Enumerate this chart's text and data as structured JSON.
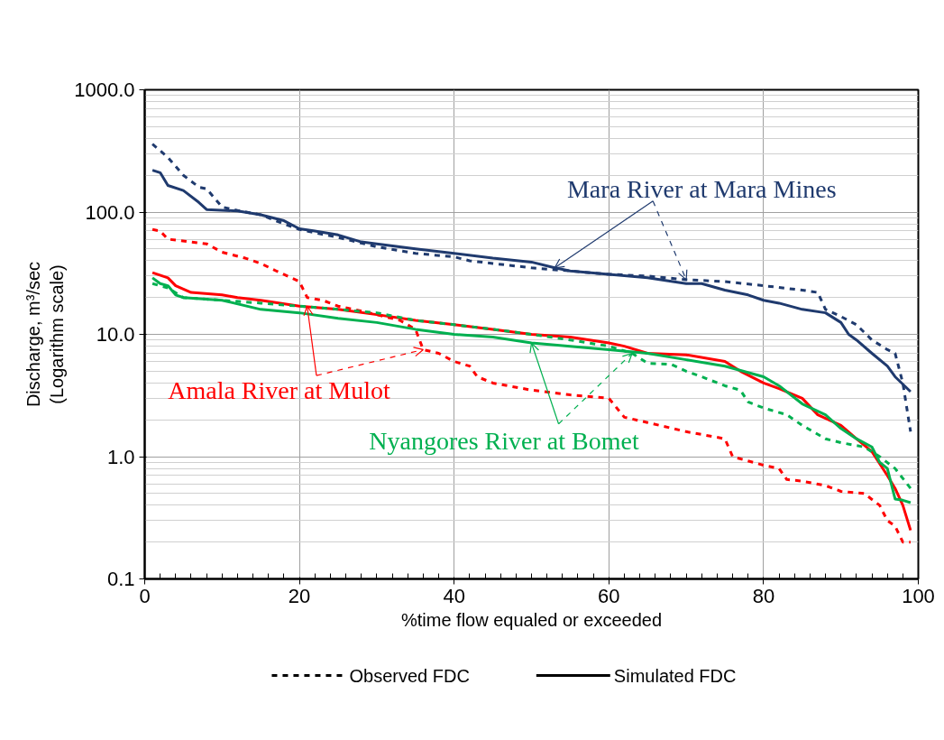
{
  "chart_data": {
    "type": "line",
    "xlabel": "%time flow equaled or exceeded",
    "ylabel": "Discharge, m³/sec\n(Logarithm scale)",
    "log": "y",
    "grid": true,
    "xlim": [
      0,
      100
    ],
    "xticks": [
      0,
      20,
      40,
      60,
      80,
      100
    ],
    "ylim": [
      0.1,
      1000
    ],
    "yticks": [
      {
        "value": 0.1,
        "label": "0.1"
      },
      {
        "value": 1,
        "label": "1.0"
      },
      {
        "value": 10,
        "label": "10.0"
      },
      {
        "value": 100,
        "label": "100.0"
      },
      {
        "value": 1000,
        "label": "1000.0"
      }
    ],
    "annotations": [
      {
        "text": "Mara River at Mara Mines",
        "x": 53,
        "y": 35
      },
      {
        "text": "Amala River at Mulot",
        "x": 21,
        "y": 17
      },
      {
        "text": "Nyangores River at Bomet",
        "x": 50,
        "y": 8.5
      },
      "Observed FDC",
      "Simulated FDC"
    ],
    "series": [
      {
        "color": "#1f3a6e",
        "line_style": "dashed",
        "x": [
          1,
          3,
          5,
          7,
          8,
          10,
          12,
          15,
          18,
          20,
          25,
          30,
          35,
          40,
          42,
          45,
          50,
          55,
          60,
          65,
          70,
          75,
          80,
          85,
          87,
          88,
          90,
          92,
          94,
          96,
          97,
          98,
          99
        ],
        "values": [
          360,
          280,
          200,
          160,
          155,
          110,
          103,
          95,
          80,
          72,
          62,
          52,
          46,
          43,
          40,
          38,
          35,
          33,
          31,
          30,
          28,
          27,
          25,
          23,
          22,
          16,
          14,
          12,
          9,
          7.5,
          7,
          4,
          1.6
        ]
      },
      {
        "color": "#1f3a6e",
        "line_style": "solid",
        "x": [
          1,
          2,
          3,
          5,
          7,
          8,
          12,
          15,
          18,
          20,
          22,
          25,
          28,
          30,
          35,
          40,
          45,
          50,
          53,
          55,
          60,
          65,
          70,
          72,
          75,
          78,
          80,
          82,
          85,
          88,
          90,
          91,
          92,
          94,
          96,
          97,
          99
        ],
        "values": [
          220,
          210,
          165,
          150,
          120,
          105,
          102,
          95,
          85,
          73,
          70,
          65,
          57,
          55,
          50,
          46,
          42,
          39,
          35,
          33,
          31,
          29,
          26,
          26,
          23,
          21,
          19,
          18,
          16,
          15,
          12.5,
          10,
          9,
          7,
          5.5,
          4.5,
          3.4
        ]
      },
      {
        "color": "#ff0000",
        "line_style": "dashed",
        "x": [
          1,
          2,
          3,
          6,
          8,
          10,
          13,
          15,
          17,
          20,
          21,
          23,
          25,
          27,
          30,
          33,
          35,
          36,
          38,
          40,
          42,
          43,
          45,
          50,
          55,
          60,
          62,
          65,
          70,
          75,
          76,
          80,
          82,
          83,
          85,
          88,
          90,
          93,
          95,
          96,
          97,
          98,
          99
        ],
        "values": [
          72,
          70,
          60,
          57,
          55,
          47,
          42,
          38,
          33,
          27,
          20,
          19,
          17,
          16,
          14.5,
          13,
          11,
          7.5,
          7,
          6,
          5.5,
          4.5,
          4,
          3.5,
          3.2,
          3,
          2.1,
          1.9,
          1.6,
          1.4,
          1.0,
          0.85,
          0.8,
          0.65,
          0.63,
          0.58,
          0.52,
          0.5,
          0.4,
          0.3,
          0.27,
          0.2,
          0.2
        ]
      },
      {
        "color": "#ff0000",
        "line_style": "solid",
        "x": [
          1,
          3,
          4,
          6,
          10,
          12,
          15,
          20,
          25,
          30,
          35,
          40,
          45,
          50,
          55,
          60,
          62,
          65,
          70,
          75,
          77,
          80,
          82,
          85,
          87,
          90,
          92,
          94,
          96,
          97,
          98,
          99
        ],
        "values": [
          32,
          29,
          25,
          22,
          21,
          20,
          19,
          17,
          16,
          14.5,
          13,
          12,
          11,
          10,
          9.5,
          8.5,
          8,
          7,
          6.8,
          6,
          5,
          4,
          3.6,
          3,
          2.2,
          1.8,
          1.4,
          1.1,
          0.7,
          0.55,
          0.4,
          0.25
        ]
      },
      {
        "color": "#00b050",
        "line_style": "dashed",
        "x": [
          1,
          3,
          5,
          10,
          15,
          20,
          25,
          30,
          35,
          40,
          45,
          50,
          55,
          60,
          63,
          65,
          68,
          70,
          72,
          75,
          77,
          78,
          80,
          83,
          85,
          88,
          90,
          93,
          95,
          97,
          99
        ],
        "values": [
          26,
          24,
          20,
          19,
          18,
          17,
          16,
          15,
          13,
          12,
          11,
          10,
          9,
          8,
          7,
          5.8,
          5.7,
          5,
          4.5,
          3.8,
          3.5,
          2.8,
          2.5,
          2.2,
          1.8,
          1.4,
          1.3,
          1.2,
          1.0,
          0.8,
          0.55
        ]
      },
      {
        "color": "#00b050",
        "line_style": "solid",
        "x": [
          1,
          2,
          3,
          4,
          5,
          10,
          15,
          20,
          25,
          30,
          35,
          40,
          45,
          50,
          55,
          60,
          65,
          70,
          75,
          80,
          82,
          85,
          88,
          90,
          92,
          94,
          95,
          96,
          97,
          98,
          99
        ],
        "values": [
          29,
          26,
          25,
          21,
          20,
          19,
          16,
          15,
          13.5,
          12.5,
          11,
          10,
          9.5,
          8.5,
          8,
          7.5,
          7,
          6.2,
          5.5,
          4.5,
          3.8,
          2.7,
          2.2,
          1.7,
          1.4,
          1.2,
          0.9,
          0.8,
          0.45,
          0.44,
          0.42
        ]
      }
    ]
  }
}
